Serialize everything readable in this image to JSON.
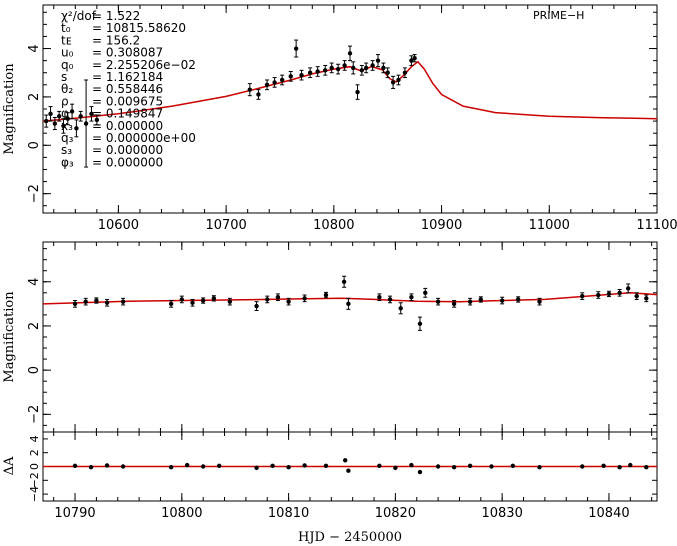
{
  "chart_data": [
    {
      "type": "scatter",
      "name": "full-light-curve",
      "ylabel": "Magnification",
      "legend_label": "PRIME−H",
      "xlim": [
        10530,
        11100
      ],
      "ylim": [
        -2.8,
        5.8
      ],
      "xticks": [
        10600,
        10700,
        10800,
        10900,
        11000,
        11100
      ],
      "xtick_labels": [
        "10600",
        "10700",
        "10800",
        "10900",
        "11000",
        "11100"
      ],
      "yticks": [
        -2,
        0,
        2,
        4
      ],
      "ytick_labels": [
        "−2",
        "0",
        "2",
        "4"
      ],
      "model": {
        "color": "#cc0000",
        "x": [
          10530,
          10560,
          10600,
          10650,
          10700,
          10730,
          10760,
          10780,
          10800,
          10815,
          10825,
          10835,
          10845,
          10852,
          10858,
          10865,
          10872,
          10878,
          10884,
          10892,
          10900,
          10920,
          10950,
          11000,
          11050,
          11100
        ],
        "y": [
          1.0,
          1.12,
          1.3,
          1.62,
          2.02,
          2.35,
          2.7,
          2.95,
          3.15,
          3.25,
          3.08,
          3.25,
          3.12,
          2.75,
          2.62,
          2.9,
          3.25,
          3.45,
          3.15,
          2.55,
          2.1,
          1.62,
          1.35,
          1.2,
          1.14,
          1.1
        ]
      },
      "series": [
        {
          "name": "PRIME-H",
          "points": [
            {
              "x": 10533,
              "y": 1.0,
              "err": 0.25
            },
            {
              "x": 10537,
              "y": 1.3,
              "err": 0.3
            },
            {
              "x": 10541,
              "y": 0.9,
              "err": 0.25
            },
            {
              "x": 10545,
              "y": 1.2,
              "err": 0.2
            },
            {
              "x": 10549,
              "y": 0.8,
              "err": 0.3
            },
            {
              "x": 10553,
              "y": 1.1,
              "err": 0.25
            },
            {
              "x": 10557,
              "y": 1.4,
              "err": 0.3
            },
            {
              "x": 10561,
              "y": 0.7,
              "err": 0.35
            },
            {
              "x": 10565,
              "y": 1.2,
              "err": 0.2
            },
            {
              "x": 10570,
              "y": 0.9,
              "err": 1.8
            },
            {
              "x": 10575,
              "y": 1.3,
              "err": 0.3
            },
            {
              "x": 10580,
              "y": 1.05,
              "err": 0.2
            },
            {
              "x": 10722,
              "y": 2.3,
              "err": 0.25
            },
            {
              "x": 10730,
              "y": 2.1,
              "err": 0.2
            },
            {
              "x": 10738,
              "y": 2.5,
              "err": 0.2
            },
            {
              "x": 10745,
              "y": 2.6,
              "err": 0.2
            },
            {
              "x": 10752,
              "y": 2.7,
              "err": 0.2
            },
            {
              "x": 10760,
              "y": 2.85,
              "err": 0.2
            },
            {
              "x": 10765,
              "y": 4.0,
              "err": 0.35
            },
            {
              "x": 10770,
              "y": 2.9,
              "err": 0.2
            },
            {
              "x": 10778,
              "y": 3.0,
              "err": 0.2
            },
            {
              "x": 10785,
              "y": 3.05,
              "err": 0.2
            },
            {
              "x": 10792,
              "y": 3.1,
              "err": 0.2
            },
            {
              "x": 10798,
              "y": 3.2,
              "err": 0.2
            },
            {
              "x": 10804,
              "y": 3.15,
              "err": 0.2
            },
            {
              "x": 10810,
              "y": 3.3,
              "err": 0.2
            },
            {
              "x": 10815,
              "y": 3.8,
              "err": 0.3
            },
            {
              "x": 10818,
              "y": 3.2,
              "err": 0.25
            },
            {
              "x": 10822,
              "y": 2.2,
              "err": 0.3
            },
            {
              "x": 10826,
              "y": 3.1,
              "err": 0.2
            },
            {
              "x": 10830,
              "y": 3.2,
              "err": 0.2
            },
            {
              "x": 10836,
              "y": 3.3,
              "err": 0.2
            },
            {
              "x": 10841,
              "y": 3.5,
              "err": 0.25
            },
            {
              "x": 10846,
              "y": 3.2,
              "err": 0.2
            },
            {
              "x": 10850,
              "y": 3.0,
              "err": 0.2
            },
            {
              "x": 10855,
              "y": 2.6,
              "err": 0.25
            },
            {
              "x": 10860,
              "y": 2.7,
              "err": 0.2
            },
            {
              "x": 10866,
              "y": 3.0,
              "err": 0.2
            },
            {
              "x": 10872,
              "y": 3.5,
              "err": 0.2
            },
            {
              "x": 10875,
              "y": 3.6,
              "err": 0.15
            }
          ]
        }
      ],
      "parameters": [
        {
          "name": "χ²/dof",
          "value": "= 1.522"
        },
        {
          "name": "t₀",
          "value": "= 10815.58620"
        },
        {
          "name": "tᴇ",
          "value": "= 156.2"
        },
        {
          "name": "u₀",
          "value": "= 0.308087"
        },
        {
          "name": "q₀",
          "value": "= 2.255206e−02"
        },
        {
          "name": "s",
          "value": "= 1.162184"
        },
        {
          "name": "θ₂",
          "value": "= 0.558446"
        },
        {
          "name": "ρ",
          "value": "= 0.009675"
        },
        {
          "name": "φ",
          "value": "= 0.149847"
        },
        {
          "name": "x₃",
          "value": "= 0.000000"
        },
        {
          "name": "q₃",
          "value": "= 0.000000e+00"
        },
        {
          "name": "s₃",
          "value": "= 0.000000"
        },
        {
          "name": "φ₃",
          "value": "= 0.000000"
        }
      ]
    },
    {
      "type": "scatter",
      "name": "zoom-light-curve",
      "ylabel": "Magnification",
      "xlim": [
        10787,
        10844.5
      ],
      "ylim": [
        -2.8,
        5.8
      ],
      "xticks": [
        10790,
        10800,
        10810,
        10820,
        10830,
        10840
      ],
      "yticks": [
        -2,
        0,
        2,
        4
      ],
      "ytick_labels": [
        "−2",
        "0",
        "2",
        "4"
      ],
      "model": {
        "color": "#cc0000",
        "x": [
          10787,
          10795,
          10800,
          10805,
          10810,
          10815,
          10818,
          10822,
          10826,
          10830,
          10834,
          10838,
          10842,
          10844.5
        ],
        "y": [
          3.0,
          3.12,
          3.15,
          3.18,
          3.22,
          3.25,
          3.2,
          3.12,
          3.1,
          3.15,
          3.2,
          3.35,
          3.5,
          3.42
        ]
      },
      "series": [
        {
          "name": "PRIME-H",
          "points": [
            {
              "x": 10790,
              "y": 3.0,
              "err": 0.15
            },
            {
              "x": 10791,
              "y": 3.1,
              "err": 0.15
            },
            {
              "x": 10792,
              "y": 3.15,
              "err": 0.12
            },
            {
              "x": 10793,
              "y": 3.05,
              "err": 0.15
            },
            {
              "x": 10794.5,
              "y": 3.1,
              "err": 0.15
            },
            {
              "x": 10799,
              "y": 3.0,
              "err": 0.15
            },
            {
              "x": 10800,
              "y": 3.2,
              "err": 0.15
            },
            {
              "x": 10801,
              "y": 3.05,
              "err": 0.15
            },
            {
              "x": 10802,
              "y": 3.15,
              "err": 0.12
            },
            {
              "x": 10803,
              "y": 3.25,
              "err": 0.12
            },
            {
              "x": 10804.5,
              "y": 3.1,
              "err": 0.15
            },
            {
              "x": 10807,
              "y": 2.9,
              "err": 0.2
            },
            {
              "x": 10808,
              "y": 3.2,
              "err": 0.15
            },
            {
              "x": 10809,
              "y": 3.3,
              "err": 0.15
            },
            {
              "x": 10810,
              "y": 3.1,
              "err": 0.15
            },
            {
              "x": 10811.5,
              "y": 3.25,
              "err": 0.15
            },
            {
              "x": 10813.5,
              "y": 3.4,
              "err": 0.12
            },
            {
              "x": 10815.2,
              "y": 4.0,
              "err": 0.25
            },
            {
              "x": 10815.6,
              "y": 3.0,
              "err": 0.25
            },
            {
              "x": 10818.5,
              "y": 3.3,
              "err": 0.15
            },
            {
              "x": 10819.5,
              "y": 3.2,
              "err": 0.15
            },
            {
              "x": 10820.5,
              "y": 2.8,
              "err": 0.25
            },
            {
              "x": 10821.5,
              "y": 3.3,
              "err": 0.15
            },
            {
              "x": 10822.3,
              "y": 2.1,
              "err": 0.3
            },
            {
              "x": 10822.8,
              "y": 3.5,
              "err": 0.2
            },
            {
              "x": 10824,
              "y": 3.1,
              "err": 0.15
            },
            {
              "x": 10825.5,
              "y": 3.0,
              "err": 0.15
            },
            {
              "x": 10827,
              "y": 3.1,
              "err": 0.15
            },
            {
              "x": 10828,
              "y": 3.2,
              "err": 0.12
            },
            {
              "x": 10830,
              "y": 3.15,
              "err": 0.15
            },
            {
              "x": 10831.5,
              "y": 3.2,
              "err": 0.12
            },
            {
              "x": 10833.5,
              "y": 3.1,
              "err": 0.15
            },
            {
              "x": 10837.5,
              "y": 3.35,
              "err": 0.15
            },
            {
              "x": 10839,
              "y": 3.4,
              "err": 0.15
            },
            {
              "x": 10840,
              "y": 3.45,
              "err": 0.12
            },
            {
              "x": 10841,
              "y": 3.5,
              "err": 0.15
            },
            {
              "x": 10841.8,
              "y": 3.7,
              "err": 0.2
            },
            {
              "x": 10842.6,
              "y": 3.35,
              "err": 0.15
            },
            {
              "x": 10843.5,
              "y": 3.25,
              "err": 0.15
            }
          ]
        }
      ]
    },
    {
      "type": "scatter",
      "name": "residuals",
      "ylabel": "ΔA",
      "xlabel": "HJD − 2450000",
      "xlim": [
        10787,
        10844.5
      ],
      "ylim": [
        -5,
        5
      ],
      "xticks": [
        10790,
        10800,
        10810,
        10820,
        10830,
        10840
      ],
      "xtick_labels": [
        "10790",
        "10800",
        "10810",
        "10820",
        "10830",
        "10840"
      ],
      "ytick_labels": [
        "−4",
        "−2",
        "0",
        "2",
        "4"
      ],
      "model": {
        "color": "#cc0000",
        "y": 0
      },
      "series": [
        {
          "name": "residuals",
          "points": [
            {
              "x": 10790,
              "y": 0.1
            },
            {
              "x": 10791.5,
              "y": -0.1
            },
            {
              "x": 10793,
              "y": 0.15
            },
            {
              "x": 10794.5,
              "y": 0.0
            },
            {
              "x": 10799,
              "y": -0.1
            },
            {
              "x": 10800.5,
              "y": 0.2
            },
            {
              "x": 10802,
              "y": 0.0
            },
            {
              "x": 10803.5,
              "y": 0.1
            },
            {
              "x": 10807,
              "y": -0.2
            },
            {
              "x": 10808.5,
              "y": 0.1
            },
            {
              "x": 10810,
              "y": -0.1
            },
            {
              "x": 10811.5,
              "y": 0.15
            },
            {
              "x": 10813.5,
              "y": 0.1
            },
            {
              "x": 10815.3,
              "y": 0.9
            },
            {
              "x": 10815.6,
              "y": -0.6
            },
            {
              "x": 10818.5,
              "y": 0.1
            },
            {
              "x": 10820,
              "y": -0.2
            },
            {
              "x": 10821.5,
              "y": 0.2
            },
            {
              "x": 10822.3,
              "y": -0.8
            },
            {
              "x": 10824,
              "y": 0.0
            },
            {
              "x": 10825.5,
              "y": -0.1
            },
            {
              "x": 10827,
              "y": 0.1
            },
            {
              "x": 10829,
              "y": 0.0
            },
            {
              "x": 10831,
              "y": 0.1
            },
            {
              "x": 10833.5,
              "y": -0.1
            },
            {
              "x": 10837.5,
              "y": 0.0
            },
            {
              "x": 10839.5,
              "y": 0.1
            },
            {
              "x": 10841,
              "y": -0.1
            },
            {
              "x": 10842,
              "y": 0.2
            },
            {
              "x": 10843.5,
              "y": -0.1
            }
          ]
        }
      ]
    }
  ]
}
